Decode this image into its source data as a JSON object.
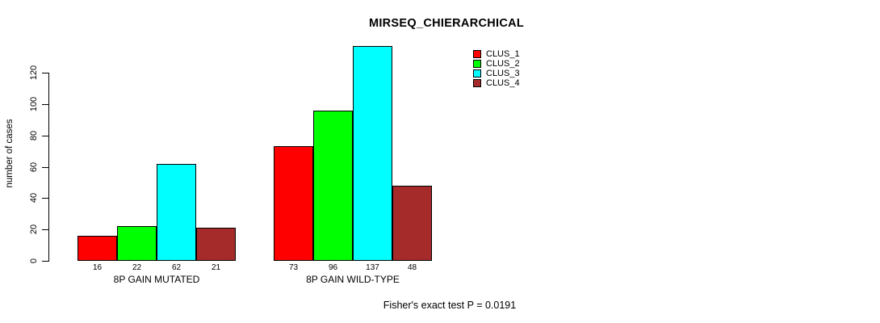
{
  "title": "MIRSEQ_CHIERARCHICAL",
  "footer": "Fisher's exact test P = 0.0191",
  "chart_data": {
    "type": "bar",
    "title": "MIRSEQ_CHIERARCHICAL",
    "categories": [
      "8P GAIN MUTATED",
      "8P GAIN WILD-TYPE"
    ],
    "series": [
      {
        "name": "CLUS_1",
        "color": "#ff0000",
        "values": [
          16,
          73
        ]
      },
      {
        "name": "CLUS_2",
        "color": "#00ff00",
        "values": [
          22,
          96
        ]
      },
      {
        "name": "CLUS_3",
        "color": "#00ffff",
        "values": [
          62,
          137
        ]
      },
      {
        "name": "CLUS_4",
        "color": "#a52a2a",
        "values": [
          21,
          48
        ]
      }
    ],
    "xlabel": "",
    "ylabel": "number of cases",
    "yticks": [
      0,
      20,
      40,
      60,
      80,
      100,
      120
    ],
    "ylim": [
      0,
      137
    ],
    "grid": false,
    "legend_position": "top-right",
    "bar_value_labels_shown": true,
    "annotation": "Fisher's exact test P = 0.0191"
  }
}
